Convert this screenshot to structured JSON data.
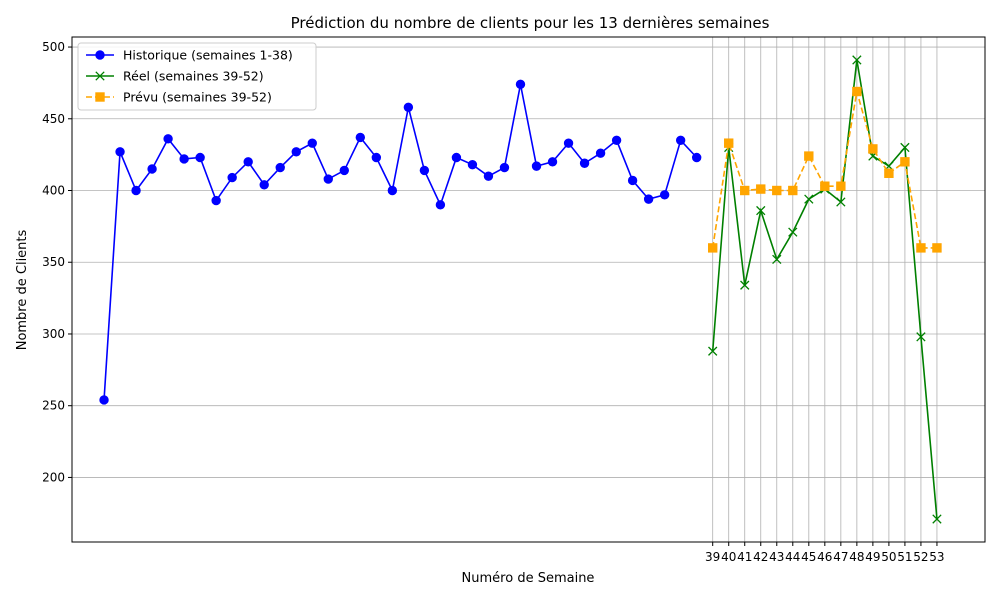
{
  "chart_data": {
    "type": "line",
    "title": "Prédiction du nombre de clients pour les 13 dernières semaines",
    "xlabel": "Numéro de Semaine",
    "ylabel": "Nombre de Clients",
    "ylim": [
      155,
      507
    ],
    "xlim": [
      -1,
      56
    ],
    "yticks": [
      200,
      250,
      300,
      350,
      400,
      450,
      500
    ],
    "xtick_values": [
      39,
      40,
      41,
      42,
      43,
      44,
      45,
      46,
      47,
      48,
      49,
      50,
      51,
      52,
      53
    ],
    "xtick_labels": [
      "39",
      "40",
      "41",
      "42",
      "43",
      "44",
      "45",
      "46",
      "47",
      "48",
      "49",
      "50",
      "51",
      "52",
      "53"
    ],
    "grid": true,
    "legend_position": "upper-left",
    "series": [
      {
        "name": "Historique (semaines 1-38)",
        "color": "#0000ff",
        "marker": "circle",
        "linestyle": "solid",
        "x": [
          1,
          2,
          3,
          4,
          5,
          6,
          7,
          8,
          9,
          10,
          11,
          12,
          13,
          14,
          15,
          16,
          17,
          18,
          19,
          20,
          21,
          22,
          23,
          24,
          25,
          26,
          27,
          28,
          29,
          30,
          31,
          32,
          33,
          34,
          35,
          36,
          37,
          38
        ],
        "values": [
          254,
          427,
          400,
          415,
          436,
          422,
          423,
          393,
          409,
          420,
          404,
          416,
          427,
          433,
          408,
          414,
          437,
          423,
          400,
          458,
          414,
          390,
          423,
          418,
          410,
          416,
          474,
          417,
          420,
          433,
          419,
          426,
          435,
          407,
          394,
          397,
          435,
          423
        ]
      },
      {
        "name": "Réel (semaines 39-52)",
        "color": "#008000",
        "marker": "x",
        "linestyle": "solid",
        "x": [
          39,
          40,
          41,
          42,
          43,
          44,
          45,
          46,
          47,
          48,
          49,
          50,
          51,
          52,
          53
        ],
        "values": [
          288,
          430,
          334,
          386,
          352,
          371,
          394,
          401,
          392,
          491,
          424,
          417,
          430,
          298,
          171
        ]
      },
      {
        "name": "Prévu (semaines 39-52)",
        "color": "#ffa500",
        "marker": "square",
        "linestyle": "dashed",
        "x": [
          39,
          40,
          41,
          42,
          43,
          44,
          45,
          46,
          47,
          48,
          49,
          50,
          51,
          52,
          53
        ],
        "values": [
          360,
          433,
          400,
          401,
          400,
          400,
          424,
          403,
          403,
          469,
          429,
          412,
          420,
          360,
          360
        ]
      }
    ]
  }
}
